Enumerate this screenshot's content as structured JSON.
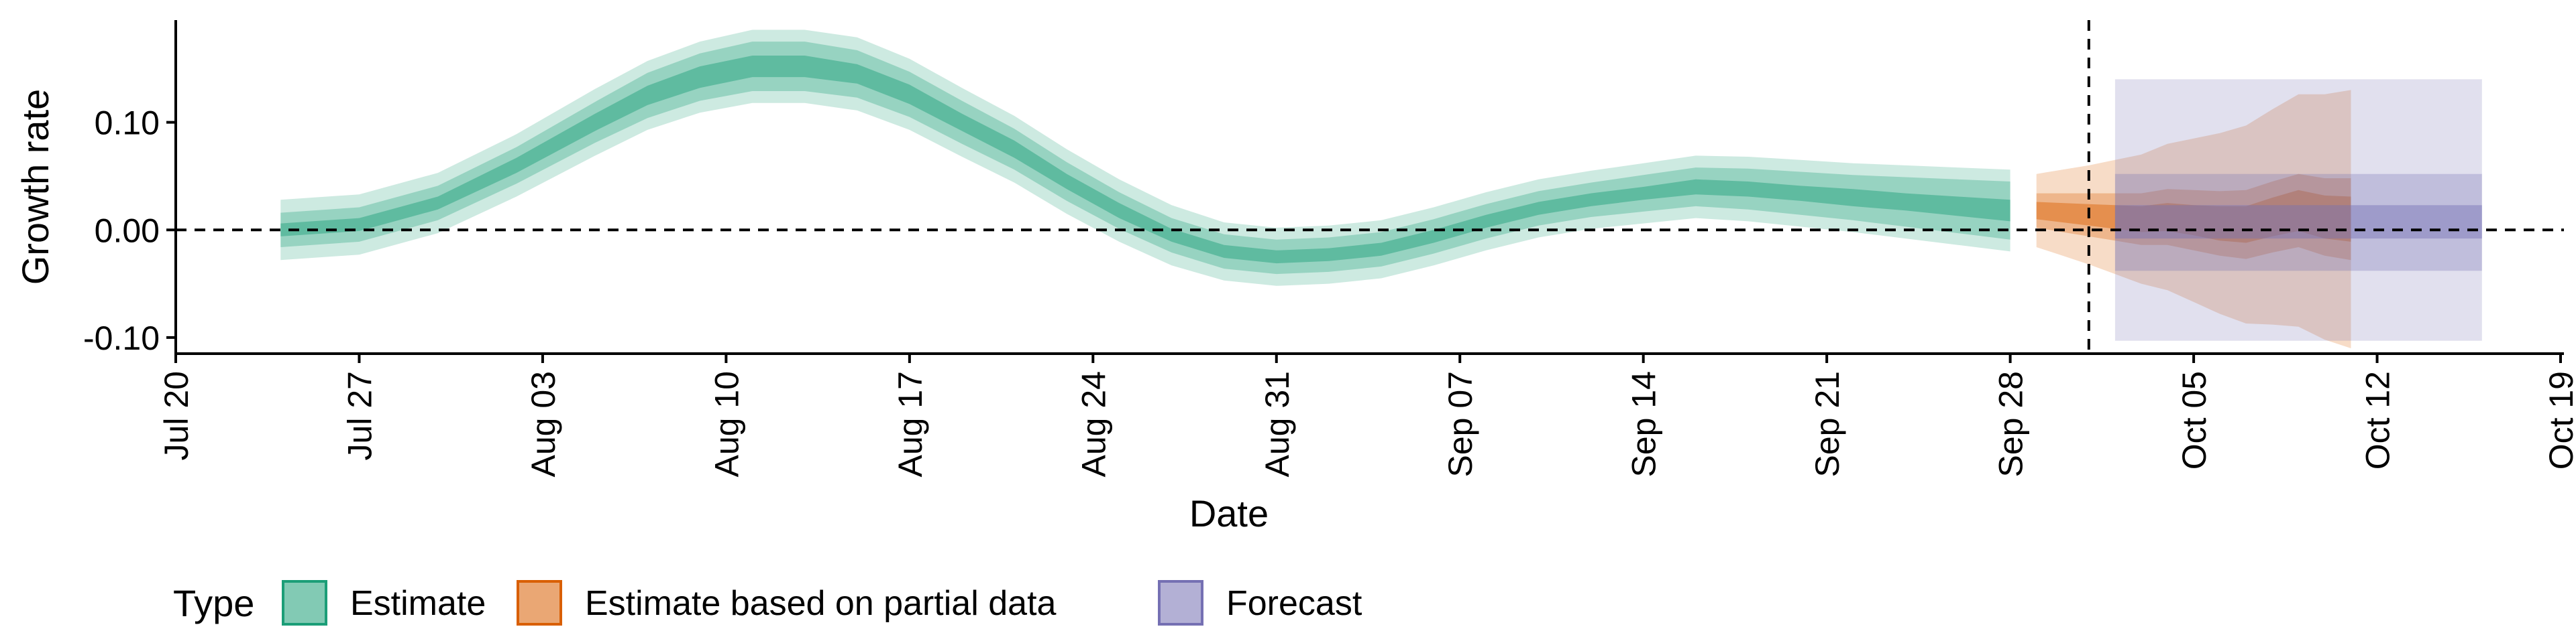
{
  "chart_data": {
    "type": "area",
    "title": "",
    "xlabel": "Date",
    "ylabel": "Growth rate",
    "x_range_days": [
      0,
      91
    ],
    "x_origin_date": "2020-07-20",
    "ylim": [
      -0.115,
      0.195
    ],
    "y_ticks": [
      -0.1,
      0.0,
      0.1
    ],
    "y_tick_labels": [
      "-0.10",
      "0.00",
      "0.10"
    ],
    "x_ticks": [
      0,
      7,
      14,
      21,
      28,
      35,
      42,
      49,
      56,
      63,
      70,
      77,
      84,
      91
    ],
    "x_tick_labels": [
      "Jul 20",
      "Jul 27",
      "Aug 03",
      "Aug 10",
      "Aug 17",
      "Aug 24",
      "Aug 31",
      "Sep 07",
      "Sep 14",
      "Sep 21",
      "Sep 28",
      "Oct 05",
      "Oct 12",
      "Oct 19"
    ],
    "reference_line_y": 0,
    "vertical_line_day": 73,
    "legend": {
      "title": "Type",
      "position": "bottom",
      "entries": [
        {
          "label": "Estimate",
          "fill": "#1b9e77",
          "stroke": "#1b9e77"
        },
        {
          "label": "Estimate based on partial data",
          "fill": "#d95f02",
          "stroke": "#d95f02"
        },
        {
          "label": "Forecast",
          "fill": "#7570b3",
          "stroke": "#7570b3"
        }
      ]
    },
    "series": [
      {
        "name": "Estimate",
        "color": "#1b9e77",
        "x": [
          4,
          7,
          10,
          13,
          16,
          18,
          20,
          22,
          24,
          26,
          28,
          30,
          32,
          34,
          36,
          38,
          40,
          42,
          44,
          46,
          48,
          50,
          52,
          54,
          56,
          58,
          60,
          62,
          64,
          66,
          68,
          70
        ],
        "median": [
          0.0,
          0.005,
          0.025,
          0.06,
          0.1,
          0.125,
          0.142,
          0.152,
          0.152,
          0.145,
          0.126,
          0.1,
          0.075,
          0.045,
          0.018,
          -0.005,
          -0.02,
          -0.025,
          -0.023,
          -0.018,
          -0.006,
          0.008,
          0.02,
          0.028,
          0.034,
          0.04,
          0.038,
          0.034,
          0.03,
          0.026,
          0.022,
          0.018
        ],
        "inner50": [
          0.006,
          0.006,
          0.006,
          0.007,
          0.008,
          0.009,
          0.01,
          0.01,
          0.01,
          0.009,
          0.009,
          0.008,
          0.008,
          0.007,
          0.007,
          0.006,
          0.006,
          0.006,
          0.006,
          0.006,
          0.006,
          0.006,
          0.006,
          0.006,
          0.006,
          0.007,
          0.007,
          0.007,
          0.008,
          0.008,
          0.009,
          0.01
        ],
        "mid90": [
          0.016,
          0.016,
          0.016,
          0.017,
          0.019,
          0.021,
          0.022,
          0.023,
          0.023,
          0.022,
          0.021,
          0.02,
          0.019,
          0.018,
          0.017,
          0.016,
          0.016,
          0.016,
          0.016,
          0.016,
          0.016,
          0.016,
          0.016,
          0.016,
          0.017,
          0.018,
          0.019,
          0.02,
          0.021,
          0.023,
          0.025,
          0.027
        ],
        "outer": [
          0.028,
          0.028,
          0.028,
          0.029,
          0.031,
          0.032,
          0.033,
          0.034,
          0.034,
          0.034,
          0.033,
          0.032,
          0.031,
          0.03,
          0.029,
          0.028,
          0.027,
          0.027,
          0.027,
          0.027,
          0.027,
          0.027,
          0.027,
          0.027,
          0.028,
          0.029,
          0.03,
          0.031,
          0.032,
          0.034,
          0.036,
          0.038
        ]
      },
      {
        "name": "Estimate based on partial data",
        "color": "#d95f02",
        "x": [
          71,
          72,
          73,
          74,
          75,
          76,
          77,
          78,
          79,
          80,
          81,
          82,
          83
        ],
        "median": [
          0.018,
          0.016,
          0.014,
          0.012,
          0.01,
          0.012,
          0.009,
          0.006,
          0.005,
          0.012,
          0.018,
          0.012,
          0.01
        ],
        "inner50": [
          0.008,
          0.009,
          0.01,
          0.011,
          0.012,
          0.013,
          0.014,
          0.016,
          0.017,
          0.018,
          0.019,
          0.02,
          0.021
        ],
        "mid90": [
          0.016,
          0.018,
          0.02,
          0.022,
          0.024,
          0.026,
          0.028,
          0.03,
          0.032,
          0.033,
          0.034,
          0.036,
          0.038
        ],
        "outer": [
          0.034,
          0.04,
          0.046,
          0.053,
          0.06,
          0.068,
          0.076,
          0.084,
          0.092,
          0.1,
          0.108,
          0.114,
          0.12
        ]
      },
      {
        "name": "Forecast",
        "color": "#7570b3",
        "x_start": 74,
        "x_end": 88,
        "median": 0.0,
        "inner50": [
          -0.008,
          0.023
        ],
        "mid90": [
          -0.038,
          0.052
        ],
        "outer": [
          -0.103,
          0.14
        ]
      }
    ]
  }
}
